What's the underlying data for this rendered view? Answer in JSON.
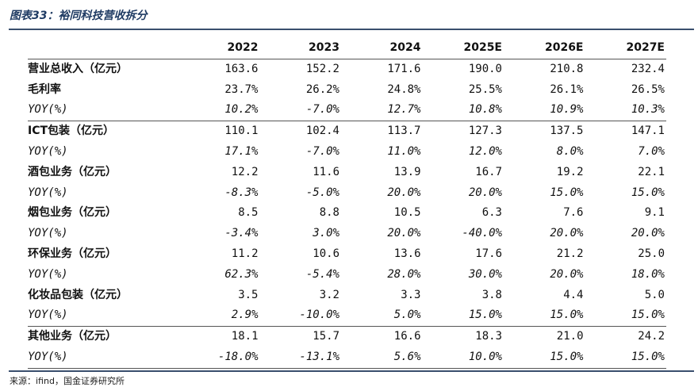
{
  "title": "图表33：裕同科技营收拆分",
  "source": "来源：ifind，国金证券研究所",
  "columns": [
    "",
    "2022",
    "2023",
    "2024",
    "2025E",
    "2026E",
    "2027E"
  ],
  "rows": [
    {
      "label": "营业总收入（亿元）",
      "values": [
        "163.6",
        "152.2",
        "171.6",
        "190.0",
        "210.8",
        "232.4"
      ],
      "style": "main"
    },
    {
      "label": "毛利率",
      "values": [
        "23.7%",
        "26.2%",
        "24.8%",
        "25.5%",
        "26.1%",
        "26.5%"
      ],
      "style": "main"
    },
    {
      "label": "YOY(%)",
      "values": [
        "10.2%",
        "-7.0%",
        "12.7%",
        "10.8%",
        "10.9%",
        "10.3%"
      ],
      "style": "yoy"
    },
    {
      "label": "ICT包装（亿元）",
      "values": [
        "110.1",
        "102.4",
        "113.7",
        "127.3",
        "137.5",
        "147.1"
      ],
      "style": "main",
      "sep": true
    },
    {
      "label": "YOY(%)",
      "values": [
        "17.1%",
        "-7.0%",
        "11.0%",
        "12.0%",
        "8.0%",
        "7.0%"
      ],
      "style": "yoy"
    },
    {
      "label": "酒包业务（亿元）",
      "values": [
        "12.2",
        "11.6",
        "13.9",
        "16.7",
        "19.2",
        "22.1"
      ],
      "style": "main"
    },
    {
      "label": "YOY(%)",
      "values": [
        "-8.3%",
        "-5.0%",
        "20.0%",
        "20.0%",
        "15.0%",
        "15.0%"
      ],
      "style": "yoy"
    },
    {
      "label": "烟包业务（亿元）",
      "values": [
        "8.5",
        "8.8",
        "10.5",
        "6.3",
        "7.6",
        "9.1"
      ],
      "style": "main"
    },
    {
      "label": "YOY(%)",
      "values": [
        "-3.4%",
        "3.0%",
        "20.0%",
        "-40.0%",
        "20.0%",
        "20.0%"
      ],
      "style": "yoy"
    },
    {
      "label": "环保业务（亿元）",
      "values": [
        "11.2",
        "10.6",
        "13.6",
        "17.6",
        "21.2",
        "25.0"
      ],
      "style": "main"
    },
    {
      "label": "YOY(%)",
      "values": [
        "62.3%",
        "-5.4%",
        "28.0%",
        "30.0%",
        "20.0%",
        "18.0%"
      ],
      "style": "yoy"
    },
    {
      "label": "化妆品包装（亿元）",
      "values": [
        "3.5",
        "3.2",
        "3.3",
        "3.8",
        "4.4",
        "5.0"
      ],
      "style": "main"
    },
    {
      "label": "YOY(%)",
      "values": [
        "2.9%",
        "-10.0%",
        "5.0%",
        "15.0%",
        "15.0%",
        "15.0%"
      ],
      "style": "yoy"
    },
    {
      "label": "其他业务（亿元）",
      "values": [
        "18.1",
        "15.7",
        "16.6",
        "18.3",
        "21.0",
        "24.2"
      ],
      "style": "main",
      "sep": true
    },
    {
      "label": "YOY(%)",
      "values": [
        "-18.0%",
        "-13.1%",
        "5.6%",
        "10.0%",
        "15.0%",
        "15.0%"
      ],
      "style": "yoy",
      "last": true
    }
  ]
}
